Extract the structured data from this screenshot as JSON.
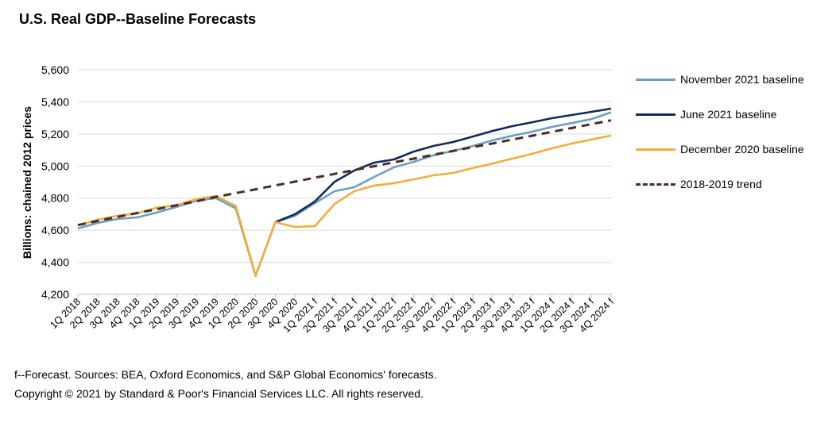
{
  "chart_data": {
    "type": "line",
    "title": "U.S. Real GDP--Baseline Forecasts",
    "xlabel": "",
    "ylabel": "Billions: chained 2012 prices",
    "ylim": [
      4200,
      5600
    ],
    "yticks": [
      4200,
      4400,
      4600,
      4800,
      5000,
      5200,
      5400,
      5600
    ],
    "ytick_labels": [
      "4,200",
      "4,400",
      "4,600",
      "4,800",
      "5,000",
      "5,200",
      "5,400",
      "5,600"
    ],
    "grid": "horizontal",
    "legend_position": "right",
    "categories": [
      "1Q 2018",
      "2Q 2018",
      "3Q 2018",
      "4Q 2018",
      "1Q 2019",
      "2Q 2019",
      "3Q 2019",
      "4Q 2019",
      "1Q 2020",
      "2Q 2020",
      "3Q 2020",
      "4Q 2020",
      "1Q 2021 f",
      "2Q 2021 f",
      "3Q 2021 f",
      "4Q 2021 f",
      "1Q 2022 f",
      "2Q 2022 f",
      "3Q 2022 f",
      "4Q 2022 f",
      "1Q 2023 f",
      "2Q 2023 f",
      "3Q 2023 f",
      "4Q 2023 f",
      "1Q 2024 f",
      "2Q 2024 f",
      "3Q 2024 f",
      "4Q 2024 f"
    ],
    "series": [
      {
        "name": "November 2021 baseline",
        "color": "#6b9dc6",
        "style": "solid",
        "values": [
          4611,
          4645,
          4670,
          4680,
          4710,
          4745,
          4784,
          4800,
          4735,
          4315,
          4650,
          4690,
          4769,
          4843,
          4868,
          4932,
          4992,
          5026,
          5066,
          5095,
          5125,
          5160,
          5189,
          5214,
          5244,
          5268,
          5293,
          5335
        ]
      },
      {
        "name": "June 2021 baseline",
        "color": "#13295b",
        "style": "solid",
        "values": [
          null,
          null,
          null,
          null,
          null,
          null,
          null,
          null,
          null,
          null,
          4650,
          4700,
          4779,
          4902,
          4972,
          5021,
          5041,
          5090,
          5125,
          5150,
          5184,
          5219,
          5249,
          5273,
          5298,
          5318,
          5338,
          5358
        ]
      },
      {
        "name": "December 2020 baseline",
        "color": "#f5ac3c",
        "style": "solid",
        "values": [
          4630,
          4665,
          4690,
          4705,
          4740,
          4755,
          4794,
          4813,
          4750,
          4318,
          4650,
          4620,
          4625,
          4764,
          4843,
          4878,
          4893,
          4917,
          4942,
          4957,
          4987,
          5016,
          5046,
          5076,
          5110,
          5140,
          5165,
          5190
        ]
      },
      {
        "name": "2018-2019 trend",
        "color": "#4a2e1e",
        "style": "dashed",
        "values": [
          4632,
          4658,
          4683,
          4707,
          4731,
          4756,
          4780,
          4808,
          4831,
          4855,
          4879,
          4903,
          4927,
          4951,
          4975,
          4999,
          5023,
          5046,
          5070,
          5094,
          5118,
          5141,
          5165,
          5189,
          5213,
          5237,
          5261,
          5285
        ]
      }
    ]
  },
  "footnotes": [
    "f--Forecast. Sources: BEA, Oxford Economics, and S&P Global Economics' forecasts.",
    "Copyright © 2021 by Standard & Poor's Financial Services LLC. All rights reserved."
  ]
}
